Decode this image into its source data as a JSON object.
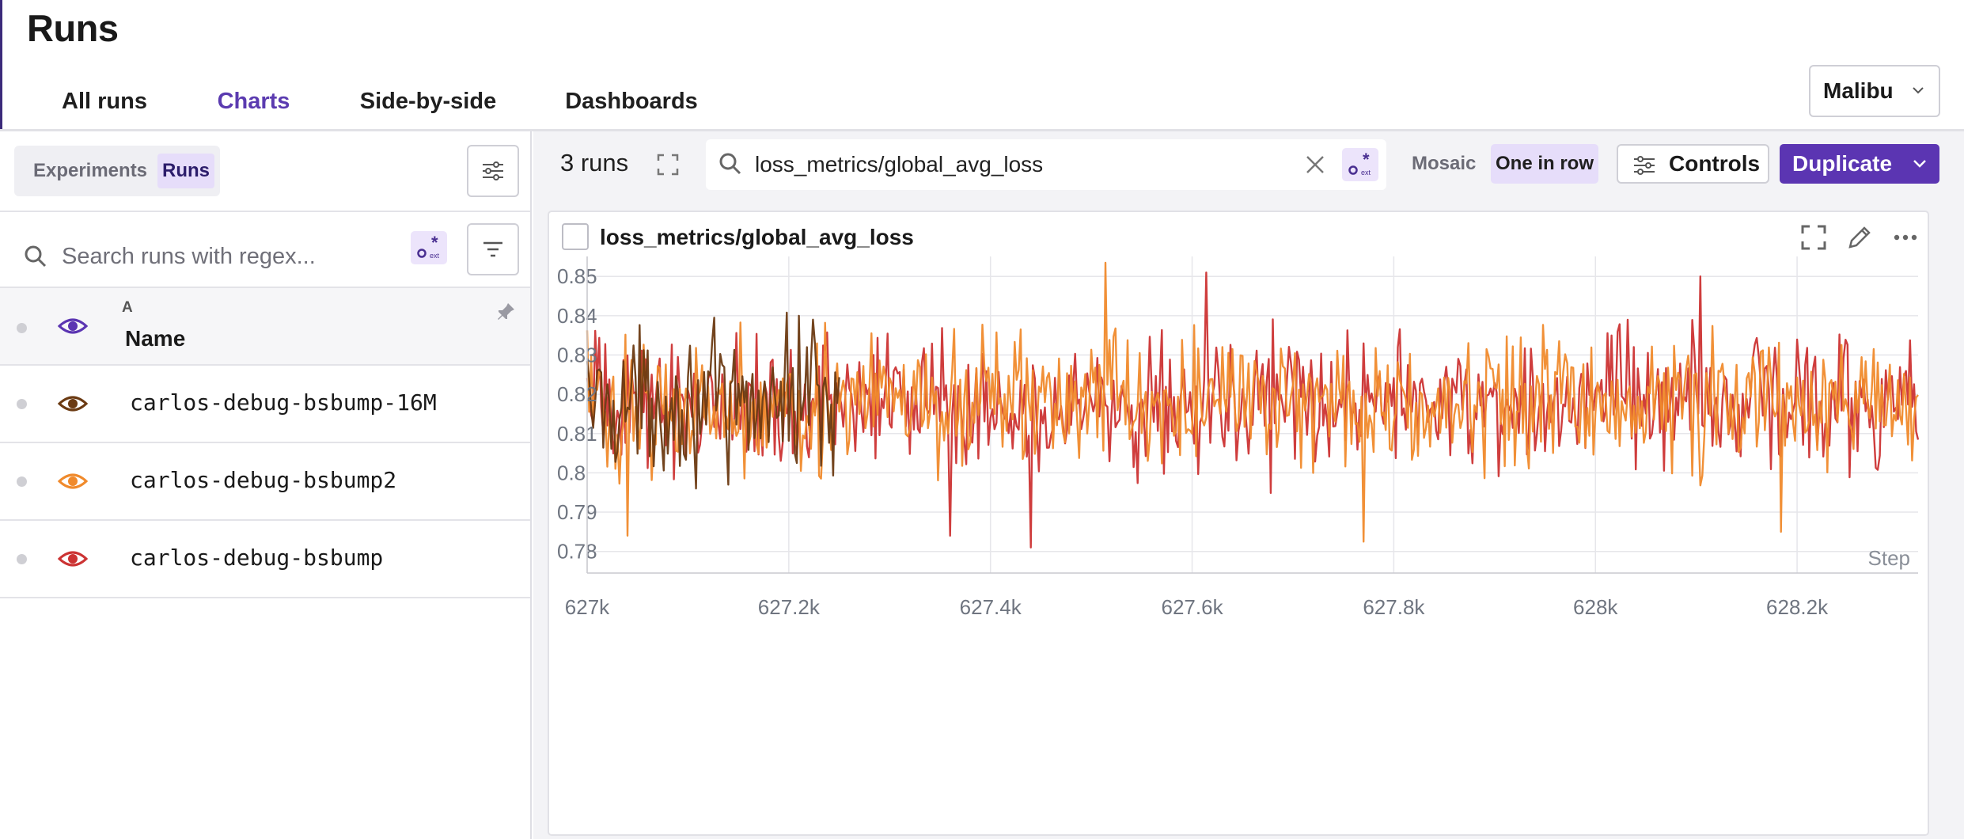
{
  "header": {
    "title": "Runs",
    "tabs": [
      {
        "label": "All runs",
        "active": false
      },
      {
        "label": "Charts",
        "active": true
      },
      {
        "label": "Side-by-side",
        "active": false
      },
      {
        "label": "Dashboards",
        "active": false
      }
    ],
    "project_selector": "Malibu"
  },
  "sidebar": {
    "toggle": {
      "experiments": "Experiments",
      "runs": "Runs"
    },
    "search_placeholder": "Search runs with regex...",
    "table": {
      "sort_indicator": "A",
      "name_header": "Name"
    },
    "runs": [
      {
        "name": "carlos-debug-bsbump-16M",
        "color": "#6b3a12"
      },
      {
        "name": "carlos-debug-bsbump2",
        "color": "#f08a2c"
      },
      {
        "name": "carlos-debug-bsbump",
        "color": "#cc3333"
      }
    ]
  },
  "toolbar": {
    "runs_count": "3 runs",
    "metric_search_value": "loss_metrics/global_avg_loss",
    "mosaic_label": "Mosaic",
    "one_in_row_label": "One in row",
    "controls_label": "Controls",
    "duplicate_label": "Duplicate"
  },
  "colors": {
    "accent": "#5b35b2",
    "accent_light": "#e6ddfa"
  },
  "chart_data": {
    "type": "line",
    "title": "loss_metrics/global_avg_loss",
    "xlabel": "Step",
    "ylabel": "",
    "xlim": [
      627000,
      628320
    ],
    "ylim": [
      0.7745,
      0.8575
    ],
    "x_ticks": [
      627000,
      627200,
      627400,
      627600,
      627800,
      628000,
      628200
    ],
    "x_tick_labels": [
      "627k",
      "627.2k",
      "627.4k",
      "627.6k",
      "627.8k",
      "628k",
      "628.2k"
    ],
    "y_ticks": [
      0.78,
      0.79,
      0.8,
      0.81,
      0.82,
      0.83,
      0.84,
      0.85
    ],
    "y_tick_labels": [
      "0.78",
      "0.79",
      "0.8",
      "0.81",
      "0.82",
      "0.83",
      "0.84",
      "0.85"
    ],
    "grid": true,
    "series": [
      {
        "name": "carlos-debug-bsbump-16M",
        "color": "#6b3a12",
        "x_range": [
          627000,
          627250
        ],
        "mean": 0.818,
        "spread": 0.011,
        "extremes": [
          {
            "x": 627210,
            "y": 0.84
          },
          {
            "x": 627225,
            "y": 0.839
          },
          {
            "x": 627140,
            "y": 0.797
          }
        ]
      },
      {
        "name": "carlos-debug-bsbump",
        "color": "#cc3333",
        "x_range": [
          627000,
          628320
        ],
        "mean": 0.818,
        "spread": 0.011,
        "extremes": [
          {
            "x": 627615,
            "y": 0.851
          },
          {
            "x": 628105,
            "y": 0.85
          },
          {
            "x": 627440,
            "y": 0.781
          },
          {
            "x": 627360,
            "y": 0.784
          }
        ]
      },
      {
        "name": "carlos-debug-bsbump2",
        "color": "#f08a2c",
        "x_range": [
          627000,
          628320
        ],
        "mean": 0.818,
        "spread": 0.011,
        "extremes": [
          {
            "x": 627515,
            "y": 0.8535
          },
          {
            "x": 627040,
            "y": 0.784
          },
          {
            "x": 627770,
            "y": 0.7825
          },
          {
            "x": 628185,
            "y": 0.785
          }
        ]
      }
    ]
  }
}
